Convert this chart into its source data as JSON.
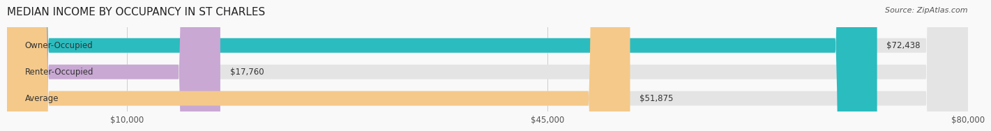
{
  "title": "MEDIAN INCOME BY OCCUPANCY IN ST CHARLES",
  "source": "Source: ZipAtlas.com",
  "categories": [
    "Owner-Occupied",
    "Renter-Occupied",
    "Average"
  ],
  "values": [
    72438,
    17760,
    51875
  ],
  "bar_colors": [
    "#2bbcbf",
    "#c9a8d4",
    "#f5c98a"
  ],
  "bar_labels": [
    "$72,438",
    "$17,760",
    "$51,875"
  ],
  "xlim": [
    0,
    80000
  ],
  "xticks": [
    10000,
    45000,
    80000
  ],
  "xticklabels": [
    "$10,000",
    "$45,000",
    "$80,000"
  ],
  "bg_color": "#f0f0f0",
  "bar_bg_color": "#e8e8e8",
  "title_fontsize": 11,
  "source_fontsize": 8,
  "label_fontsize": 8.5,
  "tick_fontsize": 8.5
}
